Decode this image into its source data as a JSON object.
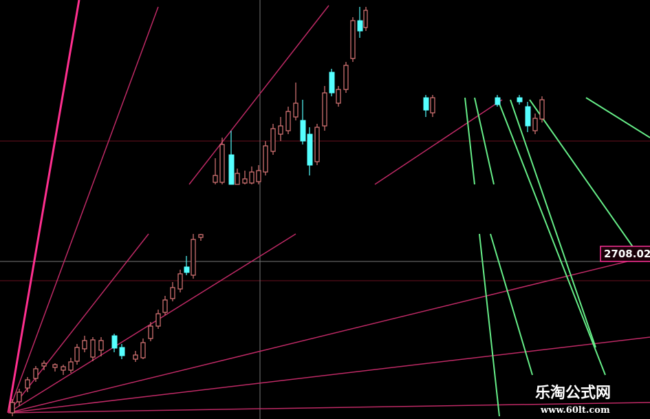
{
  "price_label": "2708.02",
  "watermark": {
    "title": "乐淘公式网",
    "url": "www.60lt.com"
  }
}
